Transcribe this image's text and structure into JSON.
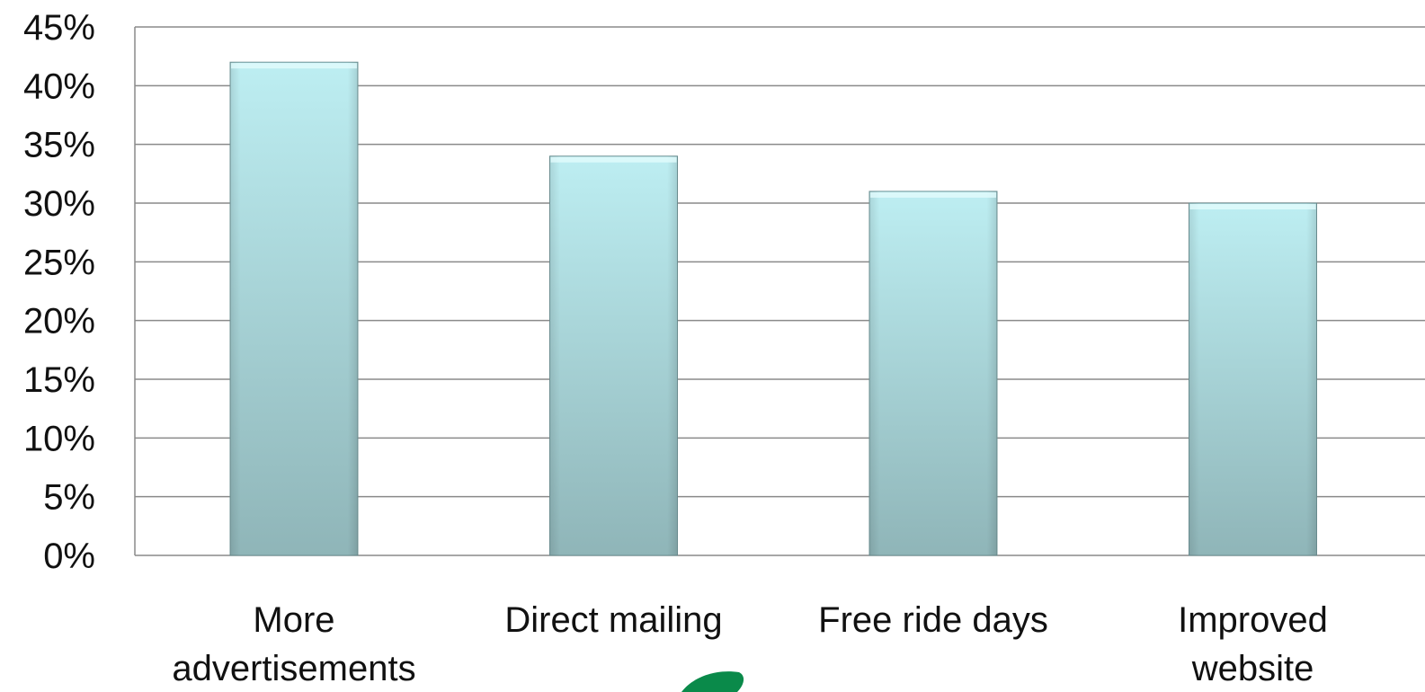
{
  "chart_data": {
    "type": "bar",
    "title": "",
    "xlabel": "",
    "ylabel": "",
    "categories": [
      [
        "More",
        "advertisements"
      ],
      [
        "Direct mailing"
      ],
      [
        "Free ride days"
      ],
      [
        "Improved",
        "website"
      ]
    ],
    "values": [
      42,
      34,
      31,
      30
    ],
    "ylim": [
      0,
      45
    ],
    "yticks": [
      0,
      5,
      10,
      15,
      20,
      25,
      30,
      35,
      40,
      45
    ],
    "ytick_format": "percent",
    "grid": true,
    "legend": "none",
    "colors": {
      "bar_top": "#bdeef2",
      "bar_bottom": "#8fb5b8",
      "bar_edge": "#6f9396",
      "grid": "#8a8a8a",
      "text": "#111111"
    }
  },
  "logo": {
    "color": "#0a8a4a"
  }
}
